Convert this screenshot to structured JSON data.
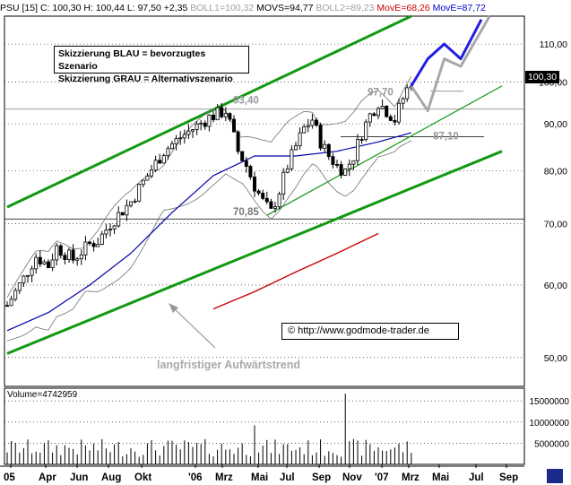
{
  "header": {
    "symbol": "PSU [15]",
    "c": "C: 100,30",
    "h": "H: 100,44",
    "l": "L: 97,50",
    "chg": "+2,35",
    "boll1": "BOLL1=100,32",
    "movs": "MOVS=94,77",
    "boll2": "BOLL2=89,23",
    "move_red": "MovE=68,26",
    "move_blue": "MovE=87,72"
  },
  "legend_box": {
    "line1": "Skizzierung BLAU = bevorzugtes Szenario",
    "line2": "Skizzierung GRAU = Alternativszenario"
  },
  "annotations": {
    "level_9340": "93,40",
    "level_9770": "97,70",
    "level_8710": "87,10",
    "level_7085": "70,85",
    "trend_text": "langfristiger Aufwärtstrend",
    "copyright": "© http://www.godmode-trader.de"
  },
  "price_tag": "100,30",
  "volume_label": "Volume=4742959",
  "colors": {
    "candle": "#000000",
    "boll": "#707070",
    "ma_blue": "#0000aa",
    "ma_red": "#cc0000",
    "trend": "#119911",
    "scenario_blue": "#1e1ee6",
    "scenario_grey": "#a8a8a8",
    "level_line": "#808080"
  },
  "chart_data": {
    "type": "candlestick",
    "x_tick_labels": [
      "05",
      "Apr",
      "Jun",
      "Aug",
      "Okt",
      "'06",
      "Mrz",
      "Mai",
      "Jul",
      "Sep",
      "Nov",
      "'07",
      "Mrz",
      "Mai",
      "Jul",
      "Sep"
    ],
    "y_tick_labels": [
      "110,00",
      "100,00",
      "90,00",
      "80,00",
      "70,00",
      "60,00",
      "50,00"
    ],
    "y_ticks": [
      110,
      100,
      90,
      80,
      70,
      60,
      50
    ],
    "y_scale": "log",
    "y_range": [
      46.5,
      118
    ],
    "volume_tick_labels": [
      "15000000",
      "10000000",
      "5000000"
    ],
    "volume_ticks": [
      15000000,
      10000000,
      5000000
    ],
    "volume_range": [
      0,
      18000000
    ],
    "horizontal_levels": [
      {
        "label": "97,70",
        "value": 97.7
      },
      {
        "label": "93,40",
        "value": 93.4
      },
      {
        "label": "87,10",
        "value": 87.1
      },
      {
        "label": "70,85",
        "value": 70.85
      }
    ],
    "last_close": 100.3,
    "anchors": [
      [
        0,
        57
      ],
      [
        4,
        61
      ],
      [
        7,
        64.5
      ],
      [
        10,
        63
      ],
      [
        12,
        66
      ],
      [
        16,
        64
      ],
      [
        20,
        66.5
      ],
      [
        22,
        67
      ],
      [
        25,
        70
      ],
      [
        30,
        74
      ],
      [
        34,
        79
      ],
      [
        38,
        84
      ],
      [
        42,
        87
      ],
      [
        46,
        89.5
      ],
      [
        49,
        91.5
      ],
      [
        53,
        93
      ],
      [
        56,
        84
      ],
      [
        58,
        81
      ],
      [
        60,
        77
      ],
      [
        62,
        74
      ],
      [
        64,
        72
      ],
      [
        66,
        76
      ],
      [
        68,
        81
      ],
      [
        70,
        85
      ],
      [
        72,
        89
      ],
      [
        74,
        91
      ],
      [
        76,
        86
      ],
      [
        78,
        83
      ],
      [
        80,
        81
      ],
      [
        82,
        80
      ],
      [
        84,
        83
      ],
      [
        86,
        88
      ],
      [
        88,
        92
      ],
      [
        90,
        95
      ],
      [
        92,
        93
      ],
      [
        94,
        91
      ],
      [
        96,
        96
      ],
      [
        98,
        100.3
      ]
    ],
    "boll_width_pct": 8,
    "ma_blue": [
      [
        0,
        53.5
      ],
      [
        10,
        56
      ],
      [
        20,
        60
      ],
      [
        30,
        65
      ],
      [
        40,
        72
      ],
      [
        50,
        79
      ],
      [
        60,
        83
      ],
      [
        70,
        83
      ],
      [
        80,
        84
      ],
      [
        90,
        86
      ],
      [
        98,
        88
      ]
    ],
    "ma_red": [
      [
        50,
        56.5
      ],
      [
        60,
        59
      ],
      [
        70,
        62
      ],
      [
        80,
        65
      ],
      [
        90,
        68.3
      ]
    ],
    "trend_channel": {
      "upper": [
        [
          0,
          73
        ],
        [
          98,
          118
        ]
      ],
      "lower": [
        [
          0,
          50.5
        ],
        [
          120,
          84
        ]
      ]
    },
    "support_line": [
      [
        63,
        71.5
      ],
      [
        120,
        99
      ]
    ],
    "scenario_blue": [
      [
        98,
        99
      ],
      [
        102,
        106
      ],
      [
        106,
        110
      ],
      [
        110,
        106
      ],
      [
        115,
        117
      ]
    ],
    "scenario_grey": [
      [
        98,
        99
      ],
      [
        102,
        93
      ],
      [
        106,
        106
      ],
      [
        110,
        104
      ],
      [
        117,
        118
      ]
    ]
  }
}
